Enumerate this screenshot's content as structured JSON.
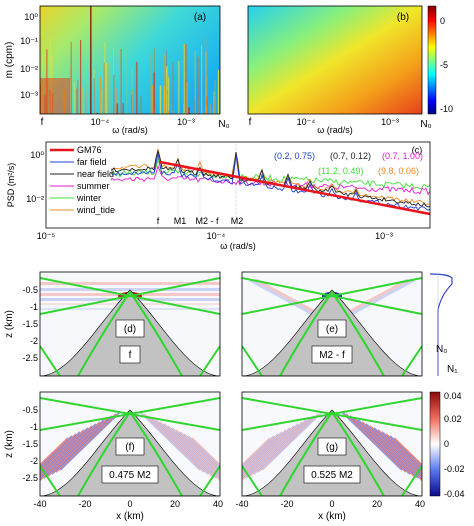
{
  "chart_data": [
    {
      "id": "a",
      "type": "heatmap",
      "panel_label": "(a)",
      "xlabel": "ω (rad/s)",
      "ylabel": "m (cpm)",
      "xscale": "log",
      "yscale": "log",
      "xtick_labels": [
        "f",
        "10⁻⁴",
        "10⁻³",
        "N₀"
      ],
      "ytick_labels": [
        "10⁰",
        "10⁻¹",
        "10⁻²",
        "10⁻³"
      ]
    },
    {
      "id": "b",
      "type": "heatmap",
      "panel_label": "(b)",
      "xlabel": "ω (rad/s)",
      "xscale": "log",
      "yscale": "log",
      "xtick_labels": [
        "f",
        "10⁻⁴",
        "10⁻³",
        "N₀"
      ],
      "colorbar": {
        "ticks": [
          0,
          -5,
          -10
        ],
        "range": [
          -10,
          2
        ]
      }
    },
    {
      "id": "c",
      "type": "line",
      "panel_label": "(c)",
      "xlabel": "ω (rad/s)",
      "ylabel": "PSD (m²/s)",
      "xscale": "log",
      "yscale": "log",
      "xtick_labels": [
        "10⁻⁵",
        "10⁻⁴",
        "10⁻³"
      ],
      "ytick_labels": [
        "10⁰",
        "10⁻²"
      ],
      "freq_labels": [
        "f",
        "M1",
        "M2 - f",
        "M2"
      ],
      "series": [
        {
          "name": "GM76",
          "color": "#e8141a"
        },
        {
          "name": "far field",
          "color": "#1f3fd6"
        },
        {
          "name": "near field",
          "color": "#222222"
        },
        {
          "name": "summer",
          "color": "#e81bd6"
        },
        {
          "name": "winter",
          "color": "#3ee03a"
        },
        {
          "name": "wind_tide",
          "color": "#f08a24"
        }
      ],
      "annotations": [
        {
          "text": "(0.2, 0.75)",
          "color": "#1f3fd6"
        },
        {
          "text": "(0.7, 0.12)",
          "color": "#222222"
        },
        {
          "text": "(0.7, 1.00)",
          "color": "#e81bd6"
        },
        {
          "text": "(11.2, 0.49)",
          "color": "#3ee03a"
        },
        {
          "text": "(9.8, 0.06)",
          "color": "#f08a24"
        }
      ]
    },
    {
      "id": "d",
      "type": "heatmap",
      "panel_label": "(d)",
      "frequency_label": "f",
      "ylabel": "z (km)",
      "ytick_labels": [
        "-0.5",
        "-1",
        "-1.5",
        "-2",
        "-2.5"
      ]
    },
    {
      "id": "e",
      "type": "heatmap",
      "panel_label": "(e)",
      "frequency_label": "M2 - f",
      "profile_labels": [
        "N₀",
        "N₁"
      ]
    },
    {
      "id": "f",
      "type": "heatmap",
      "panel_label": "(f)",
      "frequency_label": "0.475 M2",
      "xlabel": "x (km)",
      "ylabel": "z (km)",
      "xtick_labels": [
        "-40",
        "-20",
        "0",
        "20",
        "40"
      ],
      "ytick_labels": [
        "-0.5",
        "-1",
        "-1.5",
        "-2",
        "-2.5"
      ]
    },
    {
      "id": "g",
      "type": "heatmap",
      "panel_label": "(g)",
      "frequency_label": "0.525 M2",
      "xlabel": "x (km)",
      "xtick_labels": [
        "-40",
        "-20",
        "0",
        "20",
        "40"
      ],
      "colorbar": {
        "ticks": [
          "0.04",
          "0.02",
          "0",
          "-0.02",
          "-0.04"
        ],
        "range": [
          -0.04,
          0.04
        ]
      }
    }
  ]
}
